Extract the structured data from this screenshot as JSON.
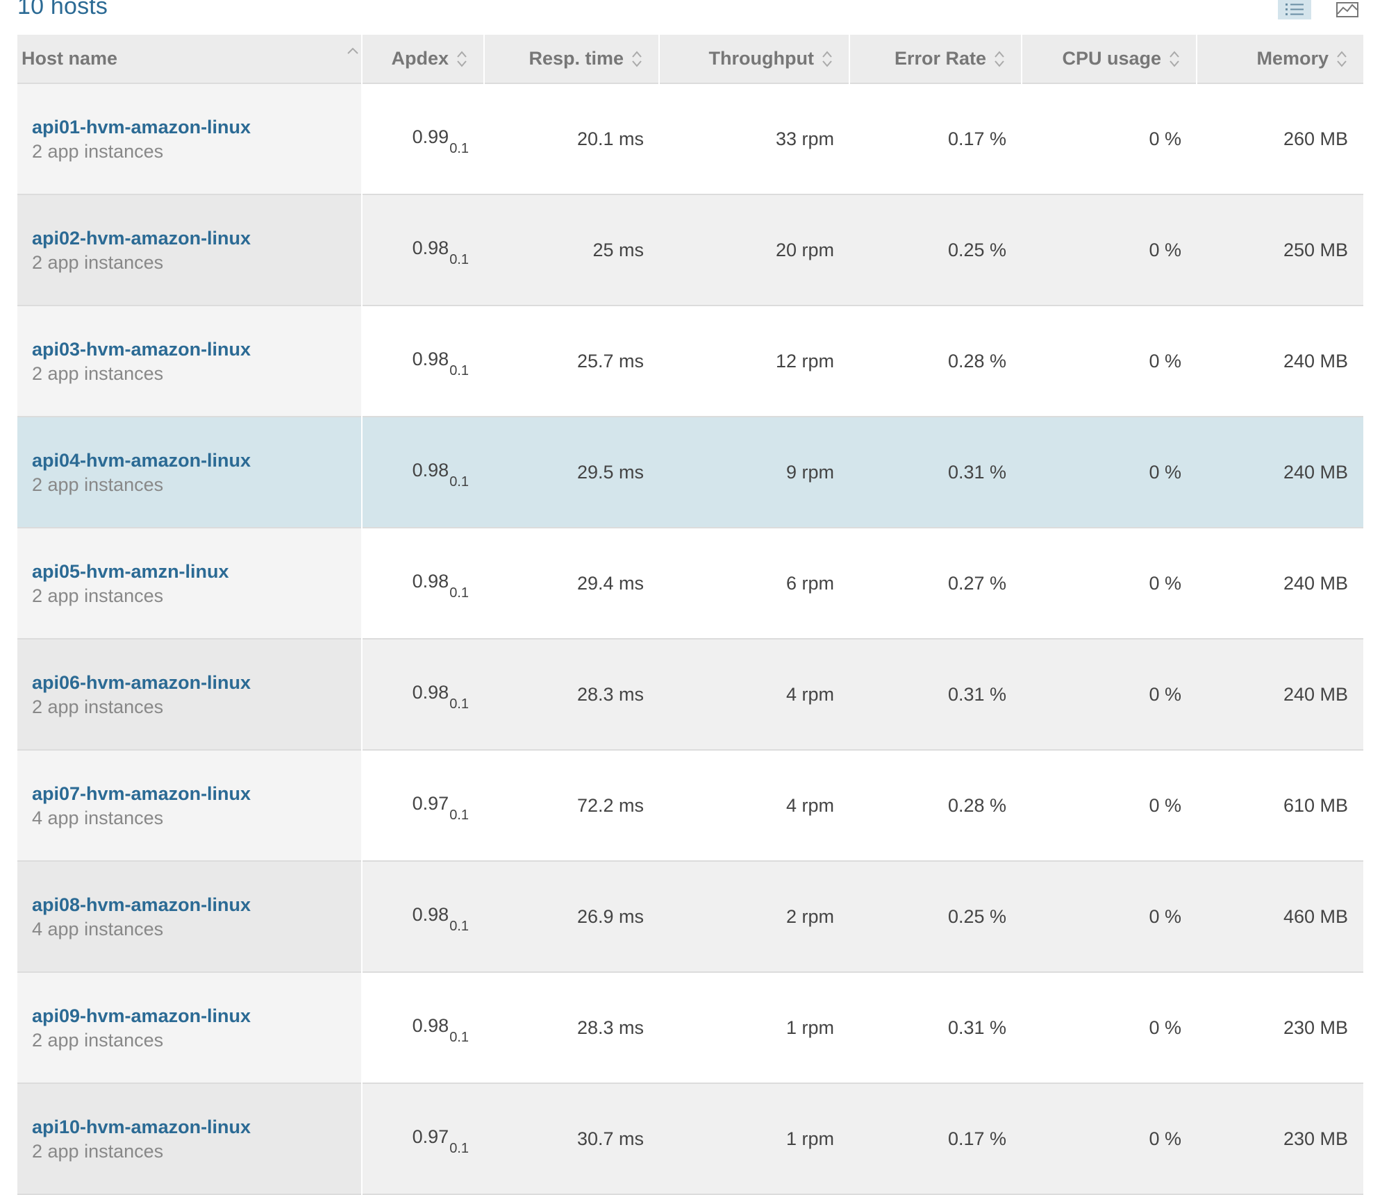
{
  "header": {
    "hosts_count": "10 hosts"
  },
  "toolbar": {
    "list_view_icon": "list-icon",
    "chart_view_icon": "chart-icon"
  },
  "table": {
    "columns": {
      "host": "Host name",
      "apdex": "Apdex",
      "resp": "Resp. time",
      "throughput": "Throughput",
      "error": "Error Rate",
      "cpu": "CPU usage",
      "memory": "Memory"
    },
    "rows": [
      {
        "host": "api01-hvm-amazon-linux",
        "instances": "2 app instances",
        "apdex": "0.99",
        "apdex_t": "0.1",
        "resp": "20.1 ms",
        "throughput": "33 rpm",
        "error": "0.17 %",
        "cpu": "0 %",
        "memory": "260 MB"
      },
      {
        "host": "api02-hvm-amazon-linux",
        "instances": "2 app instances",
        "apdex": "0.98",
        "apdex_t": "0.1",
        "resp": "25 ms",
        "throughput": "20 rpm",
        "error": "0.25 %",
        "cpu": "0 %",
        "memory": "250 MB"
      },
      {
        "host": "api03-hvm-amazon-linux",
        "instances": "2 app instances",
        "apdex": "0.98",
        "apdex_t": "0.1",
        "resp": "25.7 ms",
        "throughput": "12 rpm",
        "error": "0.28 %",
        "cpu": "0 %",
        "memory": "240 MB"
      },
      {
        "host": "api04-hvm-amazon-linux",
        "instances": "2 app instances",
        "apdex": "0.98",
        "apdex_t": "0.1",
        "resp": "29.5 ms",
        "throughput": "9 rpm",
        "error": "0.31 %",
        "cpu": "0 %",
        "memory": "240 MB"
      },
      {
        "host": "api05-hvm-amzn-linux",
        "instances": "2 app instances",
        "apdex": "0.98",
        "apdex_t": "0.1",
        "resp": "29.4 ms",
        "throughput": "6 rpm",
        "error": "0.27 %",
        "cpu": "0 %",
        "memory": "240 MB"
      },
      {
        "host": "api06-hvm-amazon-linux",
        "instances": "2 app instances",
        "apdex": "0.98",
        "apdex_t": "0.1",
        "resp": "28.3 ms",
        "throughput": "4 rpm",
        "error": "0.31 %",
        "cpu": "0 %",
        "memory": "240 MB"
      },
      {
        "host": "api07-hvm-amazon-linux",
        "instances": "4 app instances",
        "apdex": "0.97",
        "apdex_t": "0.1",
        "resp": "72.2 ms",
        "throughput": "4 rpm",
        "error": "0.28 %",
        "cpu": "0 %",
        "memory": "610 MB"
      },
      {
        "host": "api08-hvm-amazon-linux",
        "instances": "4 app instances",
        "apdex": "0.98",
        "apdex_t": "0.1",
        "resp": "26.9 ms",
        "throughput": "2 rpm",
        "error": "0.25 %",
        "cpu": "0 %",
        "memory": "460 MB"
      },
      {
        "host": "api09-hvm-amazon-linux",
        "instances": "2 app instances",
        "apdex": "0.98",
        "apdex_t": "0.1",
        "resp": "28.3 ms",
        "throughput": "1 rpm",
        "error": "0.31 %",
        "cpu": "0 %",
        "memory": "230 MB"
      },
      {
        "host": "api10-hvm-amazon-linux",
        "instances": "2 app instances",
        "apdex": "0.97",
        "apdex_t": "0.1",
        "resp": "30.7 ms",
        "throughput": "1 rpm",
        "error": "0.17 %",
        "cpu": "0 %",
        "memory": "230 MB"
      }
    ]
  }
}
